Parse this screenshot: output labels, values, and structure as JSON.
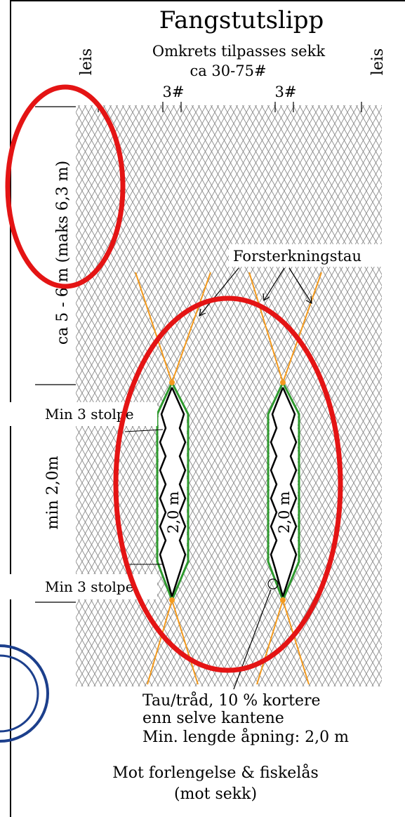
{
  "title": "Fangstutslipp",
  "subtitle_line1": "Omkrets tilpasses sekk",
  "subtitle_line2": "ca 30-75#",
  "label_leis_left": "leis",
  "label_leis_right": "leis",
  "label_3_left": "3#",
  "label_3_right": "3#",
  "label_length_vertical": "ca 5 - 6 m (maks 6,3 m)",
  "label_min_height": "min 2,0m",
  "label_reinforcement": "Forsterkningstau",
  "label_min_posts_top": "Min 3 stolpe",
  "label_min_posts_bottom": "Min 3 stolpe",
  "label_opening_left": "2,0 m",
  "label_opening_right": "2,0 m",
  "note_line1": "Tau/tråd, 10 % kortere",
  "note_line2": "enn selve kantene",
  "note_line3": "Min. lengde åpning: 2,0 m",
  "footer_line1": "Mot forlengelse & fiskelås",
  "footer_line2": "(mot sekk)",
  "colors": {
    "mesh": "#8a8a8a",
    "reinforcement_rope": "#f39a1e",
    "edge_green": "#2e9a2e",
    "highlight_red": "#e41414",
    "blue_mark": "#1c3f8c"
  }
}
